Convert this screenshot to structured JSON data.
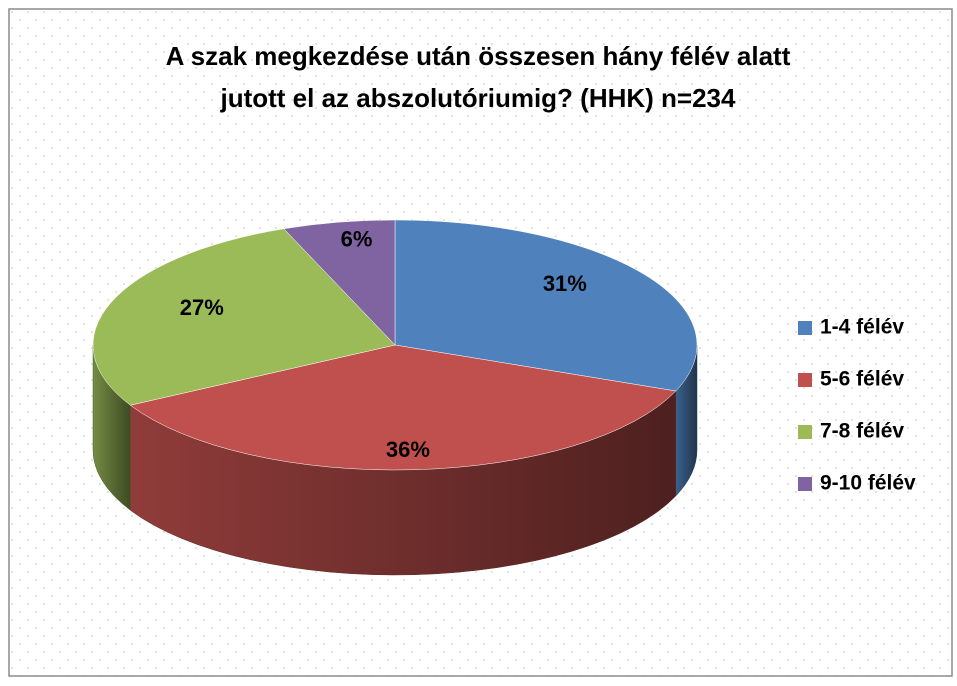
{
  "chart_data": {
    "type": "pie",
    "title": [
      "A szak megkezdése után összesen hány félév alatt",
      "jutott el az abszolutóriumig? (HHK) n=234"
    ],
    "categories": [
      "1-4 félév",
      "5-6 félév",
      "7-8 félév",
      "9-10 félév"
    ],
    "values": [
      31,
      36,
      27,
      6
    ],
    "value_labels": [
      "31%",
      "36%",
      "27%",
      "6%"
    ],
    "colors": [
      "#4f81bd",
      "#c0504d",
      "#9bbb59",
      "#8064a2"
    ],
    "legend": "right"
  }
}
